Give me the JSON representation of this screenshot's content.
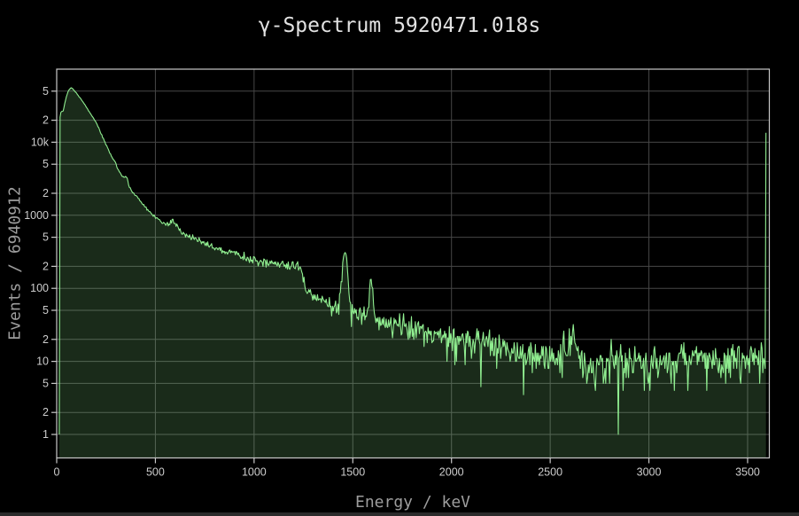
{
  "chart_data": {
    "type": "area",
    "title": "γ-Spectrum 5920471.018s",
    "xlabel": "Energy / keV",
    "ylabel": "Events / 6940912",
    "scale": {
      "x": "linear",
      "y": "log"
    },
    "x_range": [
      0,
      3610
    ],
    "y_range": [
      0.477,
      100000
    ],
    "x_ticks": [
      0,
      500,
      1000,
      1500,
      2000,
      2500,
      3000,
      3500
    ],
    "y_ticks": [
      [
        1,
        "1"
      ],
      [
        2,
        "2"
      ],
      [
        5,
        "5"
      ],
      [
        10,
        "10"
      ],
      [
        20,
        "2"
      ],
      [
        50,
        "5"
      ],
      [
        100,
        "100"
      ],
      [
        200,
        "2"
      ],
      [
        500,
        "5"
      ],
      [
        1000,
        "1000"
      ],
      [
        2000,
        "2"
      ],
      [
        5000,
        "5"
      ],
      [
        10000,
        "10k"
      ],
      [
        20000,
        "2"
      ],
      [
        50000,
        "5"
      ]
    ],
    "grid": true,
    "legend": false,
    "bin_width_kev": 4,
    "bins_start_kev": 13,
    "bins_end_kev": 3593,
    "continuum_anchors": [
      [
        13,
        0.8
      ],
      [
        15,
        2600
      ],
      [
        17,
        22000
      ],
      [
        21,
        25500
      ],
      [
        26,
        26500
      ],
      [
        32,
        26000
      ],
      [
        40,
        33000
      ],
      [
        50,
        43000
      ],
      [
        60,
        51000
      ],
      [
        72,
        56000
      ],
      [
        85,
        52500
      ],
      [
        100,
        47000
      ],
      [
        120,
        40000
      ],
      [
        140,
        33500
      ],
      [
        160,
        27500
      ],
      [
        180,
        22500
      ],
      [
        200,
        18500
      ],
      [
        215,
        15200
      ],
      [
        230,
        12200
      ],
      [
        250,
        9300
      ],
      [
        270,
        7100
      ],
      [
        290,
        5400
      ],
      [
        310,
        4250
      ],
      [
        330,
        3450
      ],
      [
        355,
        2750
      ],
      [
        380,
        2150
      ],
      [
        410,
        1720
      ],
      [
        440,
        1380
      ],
      [
        470,
        1120
      ],
      [
        500,
        930
      ],
      [
        540,
        790
      ],
      [
        575,
        700
      ],
      [
        610,
        610
      ],
      [
        650,
        545
      ],
      [
        700,
        475
      ],
      [
        750,
        415
      ],
      [
        800,
        365
      ],
      [
        850,
        325
      ],
      [
        900,
        292
      ],
      [
        950,
        263
      ],
      [
        1000,
        237
      ],
      [
        1060,
        222
      ],
      [
        1120,
        212
      ],
      [
        1180,
        206
      ],
      [
        1232,
        200
      ],
      [
        1250,
        128
      ],
      [
        1266,
        96
      ],
      [
        1290,
        80
      ],
      [
        1330,
        69
      ],
      [
        1370,
        61
      ],
      [
        1410,
        55
      ],
      [
        1450,
        55
      ],
      [
        1490,
        51
      ],
      [
        1530,
        46
      ],
      [
        1570,
        42
      ],
      [
        1610,
        39
      ],
      [
        1660,
        35.5
      ],
      [
        1720,
        32
      ],
      [
        1790,
        29
      ],
      [
        1870,
        26
      ],
      [
        1950,
        23.5
      ],
      [
        2050,
        20.5
      ],
      [
        2150,
        18
      ],
      [
        2250,
        15.5
      ],
      [
        2350,
        13.5
      ],
      [
        2450,
        12
      ],
      [
        2550,
        11
      ],
      [
        2650,
        10.3
      ],
      [
        2750,
        10
      ],
      [
        2850,
        9.8
      ],
      [
        2950,
        10
      ],
      [
        3100,
        10.6
      ],
      [
        3250,
        10.9
      ],
      [
        3400,
        10.6
      ],
      [
        3593,
        10.5
      ]
    ],
    "peaks_kev_amp_sigma": [
      [
        295,
        380,
        8
      ],
      [
        352,
        520,
        9
      ],
      [
        583,
        170,
        9
      ],
      [
        609,
        130,
        9
      ],
      [
        911,
        40,
        9
      ],
      [
        1460,
        258,
        11
      ],
      [
        1592,
        82,
        9
      ],
      [
        2614,
        11,
        13
      ]
    ],
    "forced_bins": [
      [
        2845,
        1
      ],
      [
        2365,
        3.5
      ],
      [
        2149,
        4.5
      ],
      [
        2569,
        26
      ],
      [
        3593,
        13500
      ]
    ],
    "noise_seed": 20,
    "colors": {
      "background": "#000000",
      "line": "#90ee90",
      "fill": "rgba(144,238,144,0.18)",
      "grid": "#474747",
      "spine": "#c9c9c9",
      "tick_label": "#cdcdcd",
      "title": "#e2e2e2",
      "axis_label": "#9d9d9d"
    }
  },
  "chrome": {
    "bottom_bar_color": "#2b2b2b"
  }
}
